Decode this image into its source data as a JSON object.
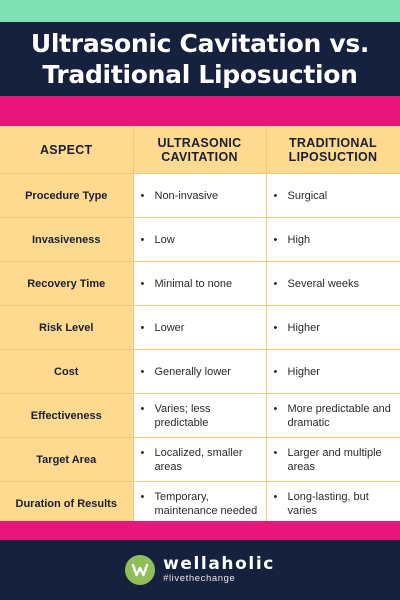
{
  "title": {
    "line1": "Ultrasonic Cavitation vs.",
    "line2": "Traditional Liposuction"
  },
  "table": {
    "headers": {
      "aspect": "ASPECT",
      "col1_line1": "ULTRASONIC",
      "col1_line2": "CAVITATION",
      "col2_line1": "TRADITIONAL",
      "col2_line2": "LIPOSUCTION"
    },
    "rows": [
      {
        "aspect": "Procedure Type",
        "ultrasonic": "Non-invasive",
        "traditional": "Surgical"
      },
      {
        "aspect": "Invasiveness",
        "ultrasonic": "Low",
        "traditional": "High"
      },
      {
        "aspect": "Recovery Time",
        "ultrasonic": "Minimal to none",
        "traditional": "Several weeks"
      },
      {
        "aspect": "Risk Level",
        "ultrasonic": "Lower",
        "traditional": "Higher"
      },
      {
        "aspect": "Cost",
        "ultrasonic": "Generally lower",
        "traditional": "Higher"
      },
      {
        "aspect": "Effectiveness",
        "ultrasonic": "Varies; less predictable",
        "traditional": "More predictable and dramatic"
      },
      {
        "aspect": "Target Area",
        "ultrasonic": "Localized, smaller areas",
        "traditional": "Larger and multiple areas"
      },
      {
        "aspect": "Duration of Results",
        "ultrasonic": "Temporary, maintenance needed",
        "traditional": "Long-lasting, but varies"
      }
    ],
    "bullet": "•"
  },
  "brand": {
    "name": "wellaholic",
    "tagline": "#livethechange",
    "logo_icon": "leaf-w-logo"
  },
  "colors": {
    "navy": "#16213d",
    "mint": "#7fe0b5",
    "pink": "#e8157a",
    "amber": "#fdda8f",
    "logo_green": "#8fbe5a"
  }
}
